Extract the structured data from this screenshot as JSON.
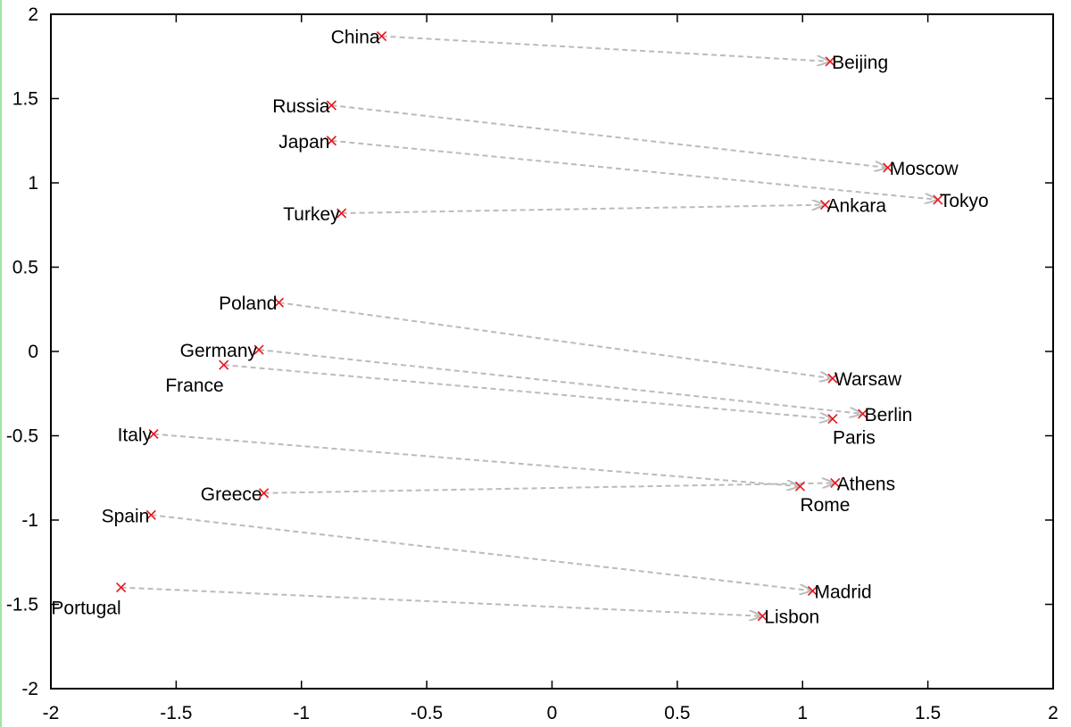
{
  "chart_data": {
    "type": "scatter",
    "title": "",
    "xlabel": "",
    "ylabel": "",
    "xlim": [
      -2,
      2
    ],
    "ylim": [
      -2,
      2
    ],
    "x_ticks": [
      "-2",
      "-1.5",
      "-1",
      "-0.5",
      "0",
      "0.5",
      "1",
      "1.5",
      "2"
    ],
    "y_ticks": [
      "2",
      "1.5",
      "1",
      "0.5",
      "0",
      "-0.5",
      "-1",
      "-1.5",
      "-2"
    ],
    "grid": false,
    "legend": "none",
    "marker_color": "#e8141c",
    "arrow_color": "#bbbbbb",
    "points": [
      {
        "label": "China",
        "x": -0.68,
        "y": 1.87,
        "label_pos": "left"
      },
      {
        "label": "Beijing",
        "x": 1.11,
        "y": 1.72,
        "label_pos": "right"
      },
      {
        "label": "Russia",
        "x": -0.88,
        "y": 1.46,
        "label_pos": "left"
      },
      {
        "label": "Japan",
        "x": -0.88,
        "y": 1.25,
        "label_pos": "left"
      },
      {
        "label": "Moscow",
        "x": 1.34,
        "y": 1.09,
        "label_pos": "right"
      },
      {
        "label": "Tokyo",
        "x": 1.54,
        "y": 0.9,
        "label_pos": "right"
      },
      {
        "label": "Ankara",
        "x": 1.09,
        "y": 0.87,
        "label_pos": "right"
      },
      {
        "label": "Turkey",
        "x": -0.84,
        "y": 0.82,
        "label_pos": "left"
      },
      {
        "label": "Poland",
        "x": -1.09,
        "y": 0.29,
        "label_pos": "left"
      },
      {
        "label": "Germany",
        "x": -1.17,
        "y": 0.01,
        "label_pos": "left"
      },
      {
        "label": "France",
        "x": -1.31,
        "y": -0.08,
        "label_pos": "below-left"
      },
      {
        "label": "Warsaw",
        "x": 1.12,
        "y": -0.16,
        "label_pos": "right"
      },
      {
        "label": "Berlin",
        "x": 1.24,
        "y": -0.37,
        "label_pos": "right"
      },
      {
        "label": "Paris",
        "x": 1.12,
        "y": -0.4,
        "label_pos": "below"
      },
      {
        "label": "Italy",
        "x": -1.59,
        "y": -0.49,
        "label_pos": "left"
      },
      {
        "label": "Greece",
        "x": -1.15,
        "y": -0.84,
        "label_pos": "left"
      },
      {
        "label": "Athens",
        "x": 1.13,
        "y": -0.78,
        "label_pos": "right"
      },
      {
        "label": "Rome",
        "x": 0.99,
        "y": -0.8,
        "label_pos": "below"
      },
      {
        "label": "Spain",
        "x": -1.6,
        "y": -0.97,
        "label_pos": "left"
      },
      {
        "label": "Madrid",
        "x": 1.04,
        "y": -1.42,
        "label_pos": "right"
      },
      {
        "label": "Portugal",
        "x": -1.72,
        "y": -1.4,
        "label_pos": "below-left"
      },
      {
        "label": "Lisbon",
        "x": 0.84,
        "y": -1.57,
        "label_pos": "right"
      }
    ],
    "arrows": [
      {
        "from": "China",
        "to": "Beijing"
      },
      {
        "from": "Russia",
        "to": "Moscow"
      },
      {
        "from": "Japan",
        "to": "Tokyo"
      },
      {
        "from": "Turkey",
        "to": "Ankara"
      },
      {
        "from": "Poland",
        "to": "Warsaw"
      },
      {
        "from": "Germany",
        "to": "Berlin"
      },
      {
        "from": "France",
        "to": "Paris"
      },
      {
        "from": "Italy",
        "to": "Rome"
      },
      {
        "from": "Greece",
        "to": "Athens"
      },
      {
        "from": "Spain",
        "to": "Madrid"
      },
      {
        "from": "Portugal",
        "to": "Lisbon"
      }
    ]
  }
}
